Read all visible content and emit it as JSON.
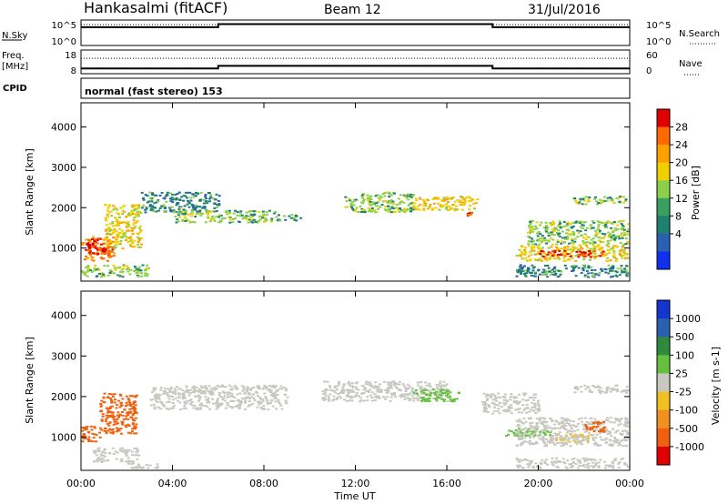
{
  "header": {
    "station": "Hankasalmi (fitACF)",
    "beam": "Beam 12",
    "date": "31/Jul/2016"
  },
  "nsky_panel": {
    "left_label": "N.Sky",
    "left_ticks": [
      "10^5",
      "10^0"
    ],
    "right_label": "N.Search",
    "right_ticks": [
      "10^5",
      "10^0"
    ],
    "levels": [
      {
        "t0": 0,
        "t1": 6,
        "value": 0.72
      },
      {
        "t0": 6,
        "t1": 18,
        "value": 0.84
      },
      {
        "t0": 18,
        "t1": 24,
        "value": 0.72
      }
    ]
  },
  "freq_panel": {
    "label_line1": "Freq.",
    "label_line2": "[MHz]",
    "left_ticks": [
      "18",
      "8"
    ],
    "right_label": "Nave",
    "right_ticks": [
      "60",
      "0"
    ],
    "freq_levels": [
      {
        "t0": 0,
        "t1": 6,
        "value": 0.22
      },
      {
        "t0": 6,
        "t1": 18,
        "value": 0.33
      },
      {
        "t0": 18,
        "t1": 24,
        "value": 0.22
      }
    ],
    "nave_dotted_level": 0.65
  },
  "cpid": {
    "label": "CPID",
    "text": "normal (fast stereo) 153"
  },
  "power_panel": {
    "ylabel": "Slant Range [km]",
    "yticks": [
      "4000",
      "3000",
      "2000",
      "1000"
    ],
    "colorbar_label": "Power [dB]",
    "colorbar_ticks": [
      "28",
      "24",
      "20",
      "16",
      "12",
      "8",
      "4"
    ],
    "colorbar_colors": [
      "#e00000",
      "#ff6a00",
      "#ffa000",
      "#f0d000",
      "#8cd04a",
      "#3aa060",
      "#1e8070",
      "#2b5fb0",
      "#1030f0"
    ]
  },
  "velocity_panel": {
    "ylabel": "Slant Range [km]",
    "yticks": [
      "4000",
      "3000",
      "2000",
      "1000"
    ],
    "colorbar_label": "Velocity [m s-1]",
    "colorbar_ticks": [
      "1000",
      "500",
      "100",
      "25",
      "-25",
      "-100",
      "-500",
      "-1000"
    ],
    "colorbar_colors": [
      "#1535d0",
      "#2b5fb0",
      "#2f8a3c",
      "#66c040",
      "#c8c8c0",
      "#f0c020",
      "#f09020",
      "#f06010",
      "#e00000"
    ]
  },
  "xaxis": {
    "label": "Time UT",
    "ticks": [
      "00:00",
      "04:00",
      "08:00",
      "12:00",
      "16:00",
      "20:00",
      "00:00"
    ]
  },
  "chart_data": {
    "type": "heatmap",
    "title": "Hankasalmi (fitACF) Beam 12 31/Jul/2016",
    "xlabel": "Time UT",
    "ylabel": "Slant Range [km]",
    "xlim": [
      0,
      24
    ],
    "ylim": [
      180,
      4600
    ],
    "power_regions": [
      {
        "t0": 0.0,
        "t1": 1.4,
        "r0": 700,
        "r1": 1300,
        "level": 24
      },
      {
        "t0": 0.2,
        "t1": 1.2,
        "r0": 850,
        "r1": 1150,
        "level": 28
      },
      {
        "t0": 1.0,
        "t1": 2.6,
        "r0": 1000,
        "r1": 2100,
        "level": 16
      },
      {
        "t0": 0.0,
        "t1": 3.0,
        "r0": 300,
        "r1": 600,
        "level": 12
      },
      {
        "t0": 2.6,
        "t1": 6.0,
        "r0": 1900,
        "r1": 2400,
        "level": 8
      },
      {
        "t0": 4.0,
        "t1": 8.5,
        "r0": 1650,
        "r1": 1950,
        "level": 12
      },
      {
        "t0": 8.5,
        "t1": 9.6,
        "r0": 1700,
        "r1": 1850,
        "level": 8
      },
      {
        "t0": 11.5,
        "t1": 14.5,
        "r0": 1900,
        "r1": 2400,
        "level": 12
      },
      {
        "t0": 14.5,
        "t1": 17.3,
        "r0": 1950,
        "r1": 2300,
        "level": 16
      },
      {
        "t0": 16.8,
        "t1": 17.2,
        "r0": 1750,
        "r1": 1900,
        "level": 24
      },
      {
        "t0": 19.0,
        "t1": 23.9,
        "r0": 700,
        "r1": 1100,
        "level": 16
      },
      {
        "t0": 20.0,
        "t1": 22.8,
        "r0": 800,
        "r1": 950,
        "level": 28
      },
      {
        "t0": 19.5,
        "t1": 23.9,
        "r0": 1100,
        "r1": 1700,
        "level": 12
      },
      {
        "t0": 21.5,
        "t1": 23.9,
        "r0": 2100,
        "r1": 2300,
        "level": 12
      },
      {
        "t0": 19.0,
        "t1": 23.9,
        "r0": 300,
        "r1": 600,
        "level": 8
      }
    ],
    "velocity_regions": [
      {
        "t0": 0.0,
        "t1": 0.8,
        "r0": 900,
        "r1": 1300,
        "value": -500
      },
      {
        "t0": 0.8,
        "t1": 2.4,
        "r0": 1100,
        "r1": 2100,
        "value": -500
      },
      {
        "t0": 0.5,
        "t1": 2.5,
        "r0": 400,
        "r1": 750,
        "value": 0
      },
      {
        "t0": 2.0,
        "t1": 3.5,
        "r0": 250,
        "r1": 380,
        "value": 0
      },
      {
        "t0": 3.0,
        "t1": 9.0,
        "r0": 1700,
        "r1": 2300,
        "value": 0
      },
      {
        "t0": 10.5,
        "t1": 16.0,
        "r0": 1900,
        "r1": 2400,
        "value": 0
      },
      {
        "t0": 14.5,
        "t1": 16.5,
        "r0": 1900,
        "r1": 2200,
        "value": 100
      },
      {
        "t0": 17.5,
        "t1": 20.0,
        "r0": 1600,
        "r1": 2100,
        "value": 0
      },
      {
        "t0": 18.5,
        "t1": 20.5,
        "r0": 1050,
        "r1": 1250,
        "value": 100
      },
      {
        "t0": 20.5,
        "t1": 22.3,
        "r0": 900,
        "r1": 1100,
        "value": -100
      },
      {
        "t0": 19.0,
        "t1": 23.9,
        "r0": 800,
        "r1": 1500,
        "value": 0
      },
      {
        "t0": 22.0,
        "t1": 23.0,
        "r0": 1150,
        "r1": 1400,
        "value": -500
      },
      {
        "t0": 21.5,
        "t1": 23.9,
        "r0": 2100,
        "r1": 2300,
        "value": 0
      },
      {
        "t0": 19.0,
        "t1": 23.9,
        "r0": 250,
        "r1": 500,
        "value": 0
      }
    ]
  }
}
